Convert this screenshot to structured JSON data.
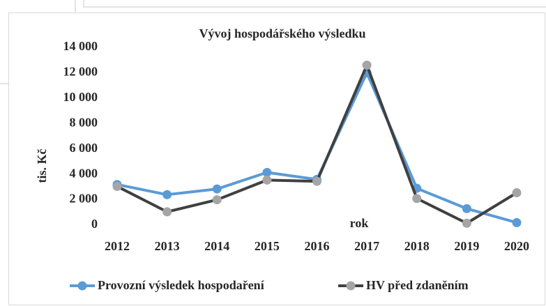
{
  "chart_data": {
    "type": "line",
    "title": "Vývoj hospodářského výsledku",
    "y_label": "tis. Kč",
    "x_label": "rok",
    "categories": [
      "2012",
      "2013",
      "2014",
      "2015",
      "2016",
      "2017",
      "2018",
      "2019",
      "2020"
    ],
    "series": [
      {
        "name": "Provozní výsledek hospodaření",
        "color": "#5b9bd5",
        "marker_color": "#5b9bd5",
        "values": [
          3200,
          2400,
          2850,
          4150,
          3600,
          12000,
          2900,
          1300,
          200
        ]
      },
      {
        "name": "HV před zdaněním",
        "color": "#404040",
        "marker_color": "#a5a5a5",
        "values": [
          3050,
          1050,
          2000,
          3550,
          3450,
          12600,
          2100,
          150,
          2550
        ]
      }
    ],
    "ylim": [
      0,
      14000
    ],
    "yticks": [
      0,
      {
        "value": 2000,
        "label": "2 000"
      },
      {
        "value": 4000,
        "label": "4 000"
      },
      {
        "value": 6000,
        "label": "6 000"
      },
      {
        "value": 8000,
        "label": "8 000"
      },
      {
        "value": 10000,
        "label": "10 000"
      },
      {
        "value": 12000,
        "label": "12 000"
      },
      {
        "value": 14000,
        "label": "14 000"
      }
    ],
    "grid": false,
    "legend": "bottom"
  }
}
